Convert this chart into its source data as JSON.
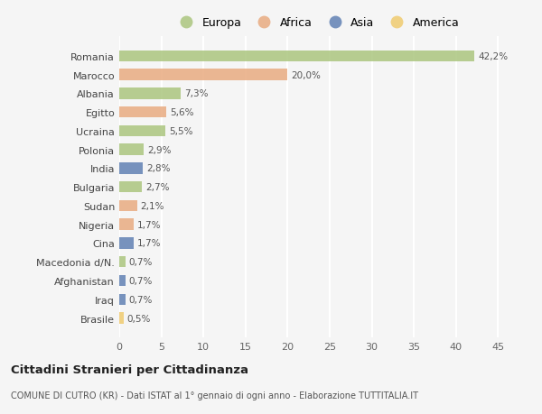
{
  "countries": [
    "Romania",
    "Marocco",
    "Albania",
    "Egitto",
    "Ucraina",
    "Polonia",
    "India",
    "Bulgaria",
    "Sudan",
    "Nigeria",
    "Cina",
    "Macedonia d/N.",
    "Afghanistan",
    "Iraq",
    "Brasile"
  ],
  "values": [
    42.2,
    20.0,
    7.3,
    5.6,
    5.5,
    2.9,
    2.8,
    2.7,
    2.1,
    1.7,
    1.7,
    0.7,
    0.7,
    0.7,
    0.5
  ],
  "labels": [
    "42,2%",
    "20,0%",
    "7,3%",
    "5,6%",
    "5,5%",
    "2,9%",
    "2,8%",
    "2,7%",
    "2,1%",
    "1,7%",
    "1,7%",
    "0,7%",
    "0,7%",
    "0,7%",
    "0,5%"
  ],
  "continents": [
    "Europa",
    "Africa",
    "Europa",
    "Africa",
    "Europa",
    "Europa",
    "Asia",
    "Europa",
    "Africa",
    "Africa",
    "Asia",
    "Europa",
    "Asia",
    "Asia",
    "America"
  ],
  "colors": {
    "Europa": "#a8c47a",
    "Africa": "#e8a87c",
    "Asia": "#5b7db1",
    "America": "#f0c96a"
  },
  "legend_order": [
    "Europa",
    "Africa",
    "Asia",
    "America"
  ],
  "xlim": [
    0,
    47
  ],
  "xticks": [
    0,
    5,
    10,
    15,
    20,
    25,
    30,
    35,
    40,
    45
  ],
  "title": "Cittadini Stranieri per Cittadinanza",
  "subtitle": "COMUNE DI CUTRO (KR) - Dati ISTAT al 1° gennaio di ogni anno - Elaborazione TUTTITALIA.IT",
  "background_color": "#f5f5f5",
  "grid_color": "#ffffff",
  "bar_alpha": 0.82,
  "bar_height": 0.6
}
